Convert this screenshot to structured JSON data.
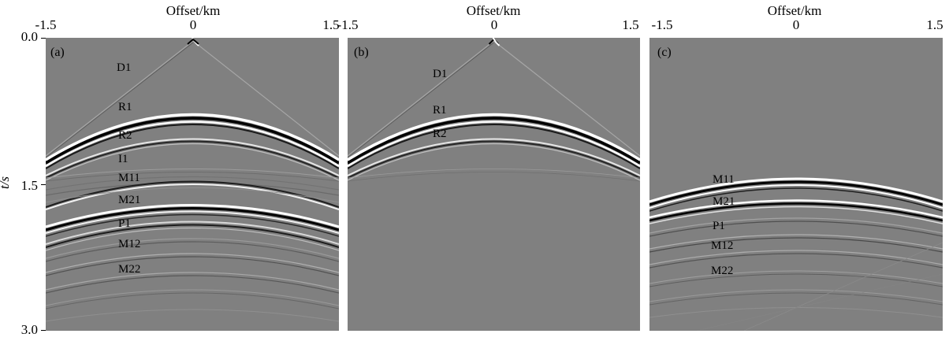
{
  "figure": {
    "y_axis": {
      "label": "t/s",
      "ticks": [
        "0.0",
        "1.5",
        "3.0"
      ]
    },
    "panels": [
      {
        "label": "(a)",
        "x_title": "Offset/km",
        "x_ticks": [
          "-1.5",
          "0",
          "1.5"
        ],
        "events": [
          "D1",
          "R1",
          "R2",
          "I1",
          "M11",
          "M21",
          "P1",
          "M12",
          "M22"
        ]
      },
      {
        "label": "(b)",
        "x_title": "Offset/km",
        "x_ticks": [
          "-1.5",
          "0",
          "1.5"
        ],
        "events": [
          "D1",
          "R1",
          "R2"
        ]
      },
      {
        "label": "(c)",
        "x_title": "Offset/km",
        "x_ticks": [
          "-1.5",
          "0",
          "1.5"
        ],
        "events": [
          "M11",
          "M21",
          "P1",
          "M12",
          "M22"
        ]
      }
    ]
  }
}
